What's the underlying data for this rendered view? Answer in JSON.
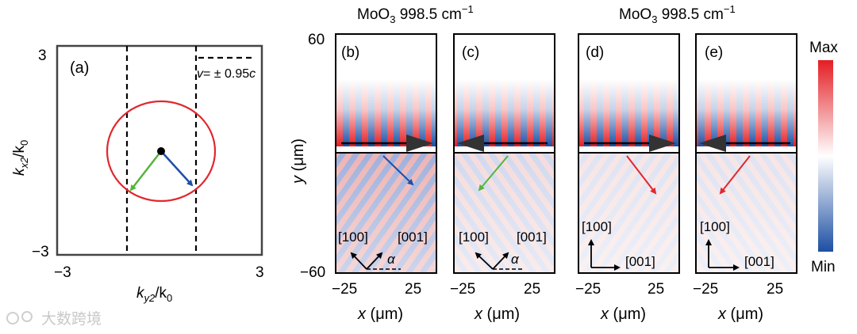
{
  "top_titles": {
    "left": {
      "material": "MoO",
      "sub": "3",
      "rest": "  998.5 cm",
      "sup": "−1"
    },
    "right": {
      "material": "MoO",
      "sub": "3",
      "rest": "  998.5 cm",
      "sup": "−1"
    }
  },
  "panel_a": {
    "label": "(a)",
    "y_axis": {
      "k": "k",
      "sub": "x2",
      "slash": "/k",
      "sub0": "0"
    },
    "x_axis": {
      "k": "k",
      "sub": "y2",
      "slash": "/k",
      "sub0": "0"
    },
    "ticks": {
      "y_top": "3",
      "y_bottom": "−3",
      "x_left": "−3",
      "x_right": "3"
    },
    "legend": {
      "v": "v",
      "rest": "= ± 0.95",
      "c": "c"
    },
    "colors": {
      "circle": "#e0282e",
      "arrow_green": "#56b43c",
      "arrow_blue": "#1f4fa8",
      "dot": "#000000"
    }
  },
  "field_panels": {
    "y_axis": {
      "y": "y",
      "unit": " (μm)",
      "tick_top": "60",
      "tick_bottom": "−60"
    },
    "x_axis": {
      "x": "x",
      "unit": " (μm)",
      "tick_left": "−25",
      "tick_right": "25"
    },
    "panels": [
      {
        "label": "(b)",
        "crystal_h": "[100]",
        "crystal_v": "[001]",
        "angle": "α"
      },
      {
        "label": "(c)",
        "crystal_h": "[100]",
        "crystal_v": "[001]",
        "angle": "α"
      },
      {
        "label": "(d)",
        "crystal_v": "[100]",
        "crystal_h": "[001]"
      },
      {
        "label": "(e)",
        "crystal_v": "[100]",
        "crystal_h": "[001]"
      }
    ]
  },
  "colorbar": {
    "max": "Max",
    "min": "Min",
    "colors": {
      "top": "#e31e24",
      "mid": "#ffffff",
      "bottom": "#1d4fa3"
    }
  },
  "watermark": "大数跨境"
}
